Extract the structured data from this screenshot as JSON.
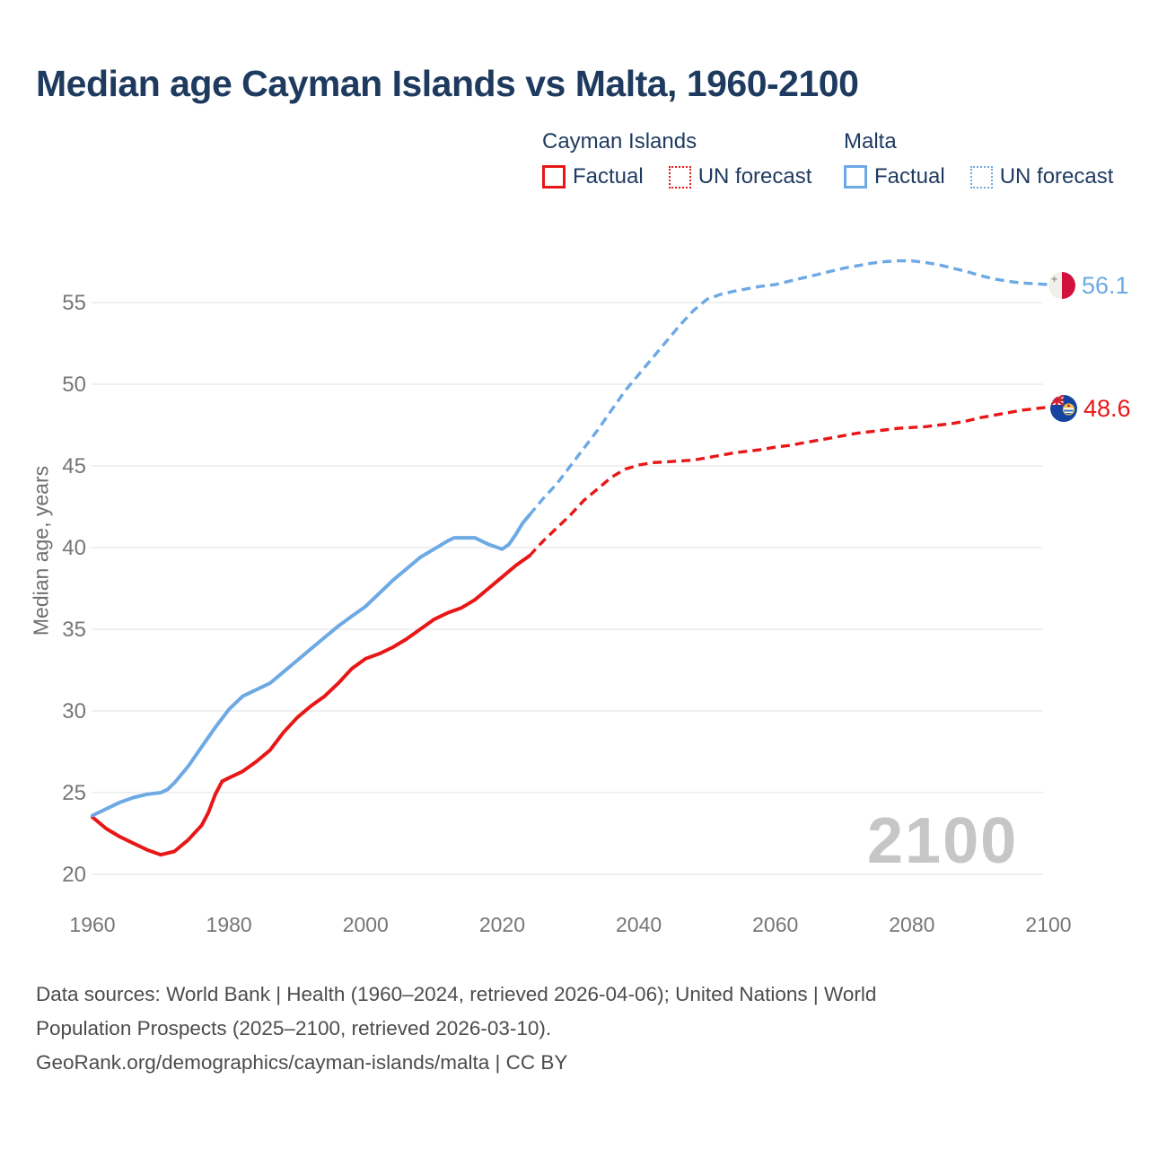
{
  "title": "Median age Cayman Islands vs Malta, 1960-2100",
  "watermark": "2100",
  "legend": {
    "groups": [
      {
        "name": "Cayman Islands",
        "color": "#e81717",
        "items": [
          {
            "label": "Factual",
            "style": "solid"
          },
          {
            "label": "UN forecast",
            "style": "dotted"
          }
        ]
      },
      {
        "name": "Malta",
        "color": "#6da9e4",
        "items": [
          {
            "label": "Factual",
            "style": "solid"
          },
          {
            "label": "UN forecast",
            "style": "dotted"
          }
        ]
      }
    ]
  },
  "footer": {
    "lines": [
      "Data sources: World Bank | Health (1960–2024, retrieved 2026-04-06); United Nations | World",
      "Population Prospects (2025–2100, retrieved 2026-03-10).",
      "GeoRank.org/demographics/cayman-islands/malta | CC BY"
    ]
  },
  "colors": {
    "cayman": "#e81717",
    "malta": "#6da9e4",
    "title_text": "#1e3a5f",
    "axis_text": "#767676",
    "gridline": "#ebebeb",
    "watermark": "#c6c6c6",
    "malta_flag_red": "#d2103b",
    "cayman_flag_blue": "#1743a0"
  },
  "chart_data": {
    "type": "line",
    "title": "Median age Cayman Islands vs Malta, 1960-2100",
    "xlabel": "",
    "ylabel": "Median age, years",
    "x_ticks": [
      1960,
      1980,
      2000,
      2020,
      2040,
      2060,
      2080,
      2100
    ],
    "y_ticks": [
      20,
      25,
      30,
      35,
      40,
      45,
      50,
      55
    ],
    "xlim": [
      1960,
      2100
    ],
    "ylim": [
      20,
      57.6
    ],
    "grid": "horizontal-only",
    "legend_position": "top-right",
    "series": [
      {
        "name": "Cayman Islands Factual",
        "color": "#e81717",
        "style": "solid",
        "points": [
          [
            1960,
            23.5
          ],
          [
            1962,
            22.8
          ],
          [
            1964,
            22.3
          ],
          [
            1966,
            21.9
          ],
          [
            1968,
            21.5
          ],
          [
            1970,
            21.2
          ],
          [
            1972,
            21.4
          ],
          [
            1974,
            22.1
          ],
          [
            1976,
            23.0
          ],
          [
            1977,
            23.8
          ],
          [
            1978,
            24.9
          ],
          [
            1979,
            25.7
          ],
          [
            1980,
            25.9
          ],
          [
            1982,
            26.3
          ],
          [
            1984,
            26.9
          ],
          [
            1986,
            27.6
          ],
          [
            1988,
            28.7
          ],
          [
            1990,
            29.6
          ],
          [
            1992,
            30.3
          ],
          [
            1994,
            30.9
          ],
          [
            1996,
            31.7
          ],
          [
            1998,
            32.6
          ],
          [
            2000,
            33.2
          ],
          [
            2002,
            33.5
          ],
          [
            2004,
            33.9
          ],
          [
            2006,
            34.4
          ],
          [
            2008,
            35.0
          ],
          [
            2010,
            35.6
          ],
          [
            2012,
            36.0
          ],
          [
            2014,
            36.3
          ],
          [
            2016,
            36.8
          ],
          [
            2018,
            37.5
          ],
          [
            2020,
            38.2
          ],
          [
            2022,
            38.9
          ],
          [
            2024,
            39.5
          ]
        ]
      },
      {
        "name": "Cayman Islands UN forecast",
        "color": "#e81717",
        "style": "dashed",
        "points": [
          [
            2024,
            39.5
          ],
          [
            2026,
            40.4
          ],
          [
            2028,
            41.2
          ],
          [
            2030,
            42.0
          ],
          [
            2032,
            42.9
          ],
          [
            2034,
            43.6
          ],
          [
            2036,
            44.3
          ],
          [
            2038,
            44.8
          ],
          [
            2040,
            45.05
          ],
          [
            2042,
            45.2
          ],
          [
            2044,
            45.25
          ],
          [
            2046,
            45.3
          ],
          [
            2048,
            45.35
          ],
          [
            2050,
            45.5
          ],
          [
            2052,
            45.65
          ],
          [
            2054,
            45.8
          ],
          [
            2056,
            45.9
          ],
          [
            2058,
            46.0
          ],
          [
            2060,
            46.15
          ],
          [
            2062,
            46.25
          ],
          [
            2064,
            46.4
          ],
          [
            2066,
            46.55
          ],
          [
            2068,
            46.7
          ],
          [
            2070,
            46.85
          ],
          [
            2072,
            47.0
          ],
          [
            2074,
            47.1
          ],
          [
            2076,
            47.2
          ],
          [
            2078,
            47.3
          ],
          [
            2080,
            47.35
          ],
          [
            2082,
            47.4
          ],
          [
            2084,
            47.5
          ],
          [
            2086,
            47.6
          ],
          [
            2088,
            47.75
          ],
          [
            2090,
            47.95
          ],
          [
            2092,
            48.1
          ],
          [
            2094,
            48.25
          ],
          [
            2096,
            48.4
          ],
          [
            2098,
            48.5
          ],
          [
            2100,
            48.6
          ]
        ]
      },
      {
        "name": "Malta Factual",
        "color": "#6da9e4",
        "style": "solid",
        "points": [
          [
            1960,
            23.6
          ],
          [
            1962,
            24.0
          ],
          [
            1964,
            24.4
          ],
          [
            1966,
            24.7
          ],
          [
            1968,
            24.9
          ],
          [
            1970,
            25.0
          ],
          [
            1971,
            25.2
          ],
          [
            1972,
            25.6
          ],
          [
            1974,
            26.6
          ],
          [
            1976,
            27.8
          ],
          [
            1978,
            29.0
          ],
          [
            1980,
            30.1
          ],
          [
            1982,
            30.9
          ],
          [
            1984,
            31.3
          ],
          [
            1986,
            31.7
          ],
          [
            1988,
            32.4
          ],
          [
            1990,
            33.1
          ],
          [
            1992,
            33.8
          ],
          [
            1994,
            34.5
          ],
          [
            1996,
            35.2
          ],
          [
            1998,
            35.8
          ],
          [
            2000,
            36.4
          ],
          [
            2002,
            37.2
          ],
          [
            2004,
            38.0
          ],
          [
            2006,
            38.7
          ],
          [
            2008,
            39.4
          ],
          [
            2010,
            39.9
          ],
          [
            2012,
            40.4
          ],
          [
            2013,
            40.6
          ],
          [
            2016,
            40.6
          ],
          [
            2018,
            40.2
          ],
          [
            2020,
            39.9
          ],
          [
            2021,
            40.2
          ],
          [
            2022,
            40.8
          ],
          [
            2023,
            41.5
          ],
          [
            2024,
            42.0
          ]
        ]
      },
      {
        "name": "Malta UN forecast",
        "color": "#6da9e4",
        "style": "dashed",
        "points": [
          [
            2024,
            42.0
          ],
          [
            2026,
            43.0
          ],
          [
            2028,
            43.9
          ],
          [
            2030,
            45.0
          ],
          [
            2032,
            46.1
          ],
          [
            2034,
            47.2
          ],
          [
            2036,
            48.4
          ],
          [
            2038,
            49.6
          ],
          [
            2040,
            50.6
          ],
          [
            2042,
            51.6
          ],
          [
            2044,
            52.6
          ],
          [
            2046,
            53.6
          ],
          [
            2048,
            54.5
          ],
          [
            2050,
            55.2
          ],
          [
            2052,
            55.5
          ],
          [
            2054,
            55.7
          ],
          [
            2056,
            55.85
          ],
          [
            2058,
            56.0
          ],
          [
            2060,
            56.1
          ],
          [
            2062,
            56.3
          ],
          [
            2064,
            56.5
          ],
          [
            2066,
            56.7
          ],
          [
            2068,
            56.9
          ],
          [
            2070,
            57.1
          ],
          [
            2072,
            57.25
          ],
          [
            2074,
            57.4
          ],
          [
            2076,
            57.5
          ],
          [
            2078,
            57.55
          ],
          [
            2080,
            57.55
          ],
          [
            2082,
            57.45
          ],
          [
            2084,
            57.3
          ],
          [
            2086,
            57.1
          ],
          [
            2088,
            56.9
          ],
          [
            2090,
            56.65
          ],
          [
            2092,
            56.45
          ],
          [
            2094,
            56.3
          ],
          [
            2096,
            56.2
          ],
          [
            2098,
            56.15
          ],
          [
            2100,
            56.1
          ]
        ]
      }
    ],
    "end_markers": [
      {
        "series": "Malta",
        "year": 2100,
        "value": 56.1,
        "label": "56.1",
        "flag": "malta-flag"
      },
      {
        "series": "Cayman Islands",
        "year": 2100,
        "value": 48.6,
        "label": "48.6",
        "flag": "cayman-islands-flag"
      }
    ]
  }
}
